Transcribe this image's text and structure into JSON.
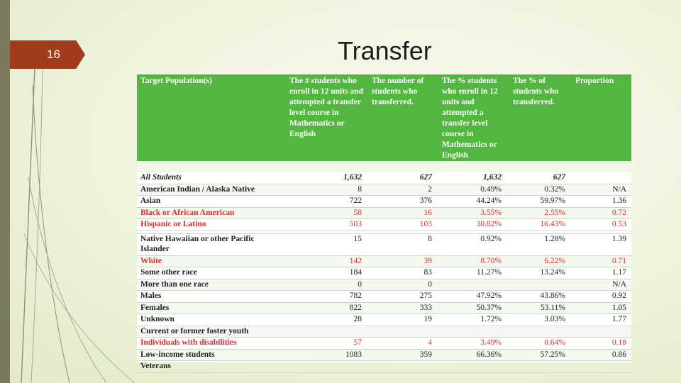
{
  "slide": {
    "number": "16",
    "title": "Transfer"
  },
  "table": {
    "headers": [
      "Target Population(s)",
      "The # students who enroll in 12 units and attempted a transfer level course in Mathematics or English",
      "The number of students who transferred.",
      "The % students who enroll in 12 units and attempted a transfer level course in Mathematics or English",
      "The % of students who transferred.",
      "Proportion"
    ],
    "rows": [
      {
        "label": "All Students",
        "n": "1,632",
        "transferred": "627",
        "pct_enrolled": "1,632",
        "pct_transferred": "627",
        "proportion": ""
      },
      {
        "label": "American Indian / Alaska Native",
        "n": "8",
        "transferred": "2",
        "pct_enrolled": "0.49%",
        "pct_transferred": "0.32%",
        "proportion": "N/A"
      },
      {
        "label": "Asian",
        "n": "722",
        "transferred": "376",
        "pct_enrolled": "44.24%",
        "pct_transferred": "59.97%",
        "proportion": "1.36"
      },
      {
        "label": "Black or African American",
        "n": "58",
        "transferred": "16",
        "pct_enrolled": "3.55%",
        "pct_transferred": "2.55%",
        "proportion": "0.72"
      },
      {
        "label": "Hispanic or Latino",
        "n": "503",
        "transferred": "103",
        "pct_enrolled": "30.82%",
        "pct_transferred": "16.43%",
        "proportion": "0.53"
      },
      {
        "label": "Native Hawaiian or other Pacific Islander",
        "n": "15",
        "transferred": "8",
        "pct_enrolled": "0.92%",
        "pct_transferred": "1.28%",
        "proportion": "1.39"
      },
      {
        "label": "White",
        "n": "142",
        "transferred": "39",
        "pct_enrolled": "8.70%",
        "pct_transferred": "6.22%",
        "proportion": "0.71"
      },
      {
        "label": "Some other race",
        "n": "184",
        "transferred": "83",
        "pct_enrolled": "11.27%",
        "pct_transferred": "13.24%",
        "proportion": "1.17"
      },
      {
        "label": "More than one race",
        "n": "0",
        "transferred": "0",
        "pct_enrolled": "",
        "pct_transferred": "",
        "proportion": "N/A"
      },
      {
        "label": "Males",
        "n": "782",
        "transferred": "275",
        "pct_enrolled": "47.92%",
        "pct_transferred": "43.86%",
        "proportion": "0.92"
      },
      {
        "label": "Females",
        "n": "822",
        "transferred": "333",
        "pct_enrolled": "50.37%",
        "pct_transferred": "53.11%",
        "proportion": "1.05"
      },
      {
        "label": "Unknown",
        "n": "28",
        "transferred": "19",
        "pct_enrolled": "1.72%",
        "pct_transferred": "3.03%",
        "proportion": "1.77"
      },
      {
        "label": "Current or former foster youth",
        "n": "",
        "transferred": "",
        "pct_enrolled": "",
        "pct_transferred": "",
        "proportion": ""
      },
      {
        "label": "Individuals with disabilities",
        "n": "57",
        "transferred": "4",
        "pct_enrolled": "3.49%",
        "pct_transferred": "0.64%",
        "proportion": "0.18"
      },
      {
        "label": "Low-income students",
        "n": "1083",
        "transferred": "359",
        "pct_enrolled": "66.36%",
        "pct_transferred": "57.25%",
        "proportion": "0.86"
      },
      {
        "label": "Veterans",
        "n": "",
        "transferred": "",
        "pct_enrolled": "",
        "pct_transferred": "",
        "proportion": ""
      }
    ]
  },
  "colors": {
    "header_green": "#52b73e",
    "highlight_red": "#d23030",
    "slide_number_tab": "#a23a1c"
  }
}
